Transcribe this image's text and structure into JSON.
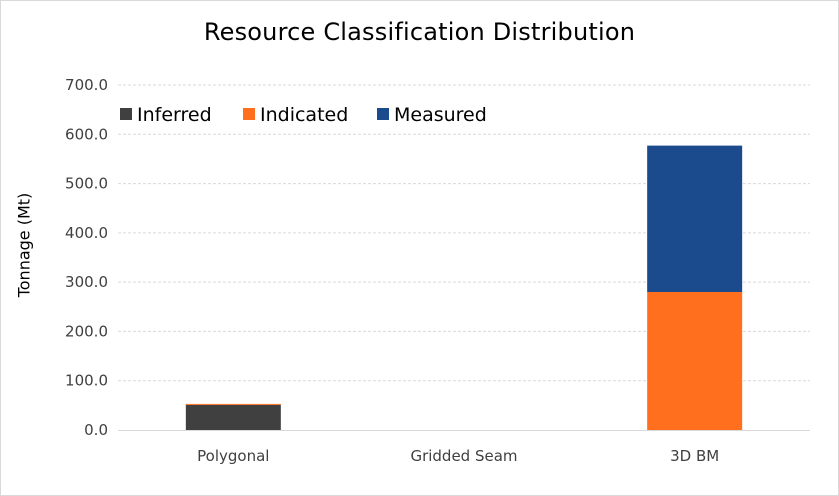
{
  "chart_data": {
    "type": "bar",
    "stacked": true,
    "title": "Resource Classification Distribution",
    "xlabel": "",
    "ylabel": "Tonnage (Mt)",
    "ylim": [
      0,
      700
    ],
    "yticks": [
      "0.0",
      "100.0",
      "200.0",
      "300.0",
      "400.0",
      "500.0",
      "600.0",
      "700.0"
    ],
    "ytick_values": [
      0,
      100,
      200,
      300,
      400,
      500,
      600,
      700
    ],
    "categories": [
      "Polygonal",
      "Gridded Seam",
      "3D BM"
    ],
    "series": [
      {
        "name": "Inferred",
        "color": "#404040",
        "values": [
          51,
          0,
          0
        ]
      },
      {
        "name": "Indicated",
        "color": "#ff6f1e",
        "values": [
          2,
          0,
          280
        ]
      },
      {
        "name": "Measured",
        "color": "#1b4b8c",
        "values": [
          0,
          0,
          297
        ]
      }
    ],
    "grid": true,
    "legend_position": "top-left"
  }
}
